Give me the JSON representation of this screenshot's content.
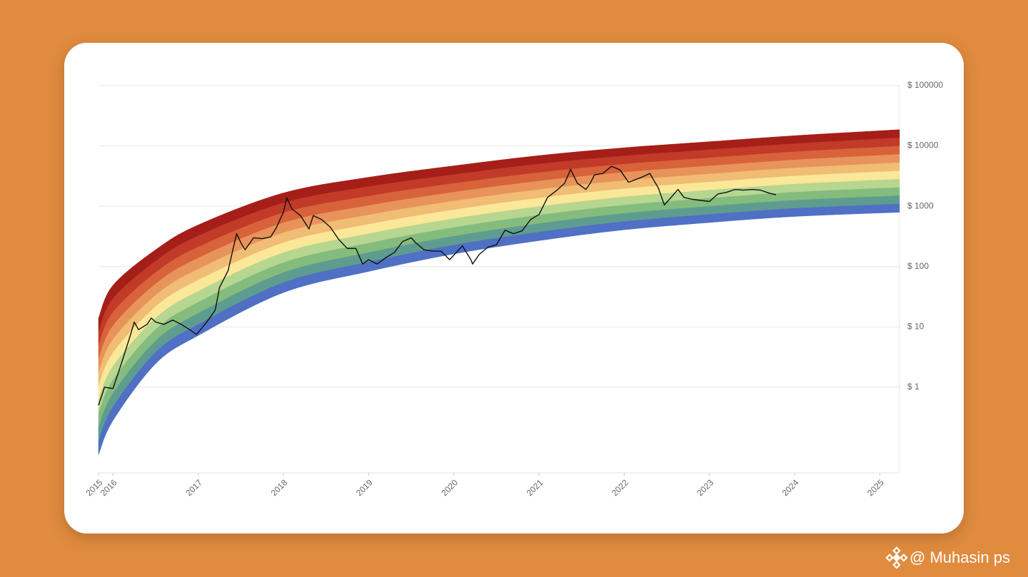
{
  "chart_data": {
    "type": "rainbow",
    "xticks": [
      {
        "value": 2015.83,
        "label": "2015"
      },
      2016,
      2017,
      2018,
      2019,
      2020,
      2021,
      2022,
      2023,
      2024,
      2025
    ],
    "xlim": [
      2015.83,
      2025.23
    ],
    "ylim": [
      0.038,
      100000
    ],
    "yticks": [
      {
        "value": 1,
        "label": "$ 1"
      },
      {
        "value": 10,
        "label": "$ 10"
      },
      {
        "value": 100,
        "label": "$ 100"
      },
      {
        "value": 1000,
        "label": "$ 1000"
      },
      {
        "value": 10000,
        "label": "$ 10000"
      },
      {
        "value": 100000,
        "label": "$ 100000"
      }
    ],
    "log_scale": true,
    "grid": true,
    "bands": {
      "x": [
        2015.83,
        2016,
        2016.5,
        2017,
        2018,
        2019,
        2020,
        2021,
        2022,
        2023,
        2024,
        2025.23
      ],
      "top": [
        14,
        49,
        190,
        490,
        1660,
        3020,
        4680,
        6920,
        9330,
        11750,
        14790,
        18620
      ],
      "bottom": [
        0.076,
        0.28,
        2.45,
        7.2,
        37,
        83,
        162,
        269,
        407,
        537,
        676,
        794
      ],
      "colors": [
        "#a51f18",
        "#c23a28",
        "#d8623a",
        "#e8935a",
        "#f1bc74",
        "#fbe798",
        "#b7d690",
        "#84bc7d",
        "#5f9c90",
        "#4f70c4"
      ]
    },
    "price": {
      "color": "#111111",
      "x": [
        2015.83,
        2015.9,
        2016.0,
        2016.1,
        2016.2,
        2016.25,
        2016.3,
        2016.4,
        2016.45,
        2016.5,
        2016.6,
        2016.7,
        2016.8,
        2016.9,
        2016.98,
        2017.1,
        2017.2,
        2017.25,
        2017.35,
        2017.45,
        2017.5,
        2017.55,
        2017.65,
        2017.75,
        2017.85,
        2017.92,
        2018.0,
        2018.04,
        2018.1,
        2018.2,
        2018.3,
        2018.35,
        2018.45,
        2018.55,
        2018.65,
        2018.75,
        2018.85,
        2018.93,
        2019.0,
        2019.1,
        2019.2,
        2019.3,
        2019.4,
        2019.5,
        2019.55,
        2019.65,
        2019.75,
        2019.85,
        2019.95,
        2020.1,
        2020.2,
        2020.22,
        2020.3,
        2020.4,
        2020.5,
        2020.6,
        2020.7,
        2020.8,
        2020.9,
        2021.0,
        2021.1,
        2021.2,
        2021.3,
        2021.37,
        2021.45,
        2021.55,
        2021.6,
        2021.65,
        2021.75,
        2021.85,
        2021.95,
        2022.05,
        2022.2,
        2022.3,
        2022.4,
        2022.47,
        2022.55,
        2022.63,
        2022.7,
        2022.8,
        2022.9,
        2023.0,
        2023.1,
        2023.2,
        2023.3,
        2023.4,
        2023.5,
        2023.6,
        2023.7,
        2023.78
      ],
      "values": [
        0.5,
        1.0,
        0.95,
        2.5,
        7,
        12,
        9,
        11,
        14,
        12,
        11,
        13,
        11,
        9,
        7.5,
        12,
        19,
        45,
        85,
        350,
        250,
        190,
        300,
        290,
        310,
        450,
        800,
        1380,
        900,
        700,
        420,
        700,
        600,
        450,
        280,
        200,
        200,
        110,
        130,
        110,
        140,
        170,
        260,
        300,
        250,
        190,
        180,
        180,
        130,
        220,
        130,
        110,
        160,
        210,
        230,
        400,
        350,
        390,
        600,
        730,
        1400,
        1800,
        2400,
        4100,
        2400,
        1900,
        2400,
        3300,
        3500,
        4600,
        4000,
        2500,
        3000,
        3500,
        2000,
        1050,
        1400,
        1900,
        1400,
        1300,
        1250,
        1200,
        1600,
        1700,
        1900,
        1850,
        1900,
        1850,
        1650,
        1550
      ]
    }
  },
  "watermark": "@ Muhasin ps"
}
